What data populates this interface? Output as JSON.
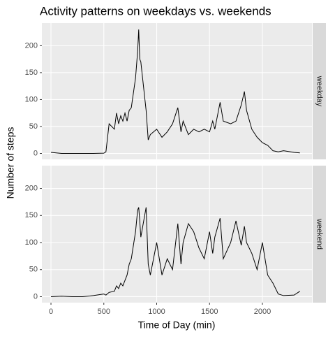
{
  "chart_data": {
    "type": "line",
    "title": "Activity patterns on weekdays vs. weekends",
    "xlabel": "Time of Day (min)",
    "ylabel": "Number of steps",
    "x": [
      0,
      100,
      200,
      300,
      400,
      500,
      520,
      550,
      600,
      620,
      640,
      660,
      680,
      700,
      720,
      740,
      760,
      800,
      820,
      830,
      840,
      850,
      900,
      920,
      940,
      1000,
      1050,
      1100,
      1150,
      1200,
      1230,
      1250,
      1300,
      1350,
      1400,
      1450,
      1500,
      1530,
      1550,
      1600,
      1630,
      1700,
      1750,
      1800,
      1830,
      1850,
      1900,
      1950,
      2000,
      2050,
      2100,
      2150,
      2200,
      2300,
      2355
    ],
    "series": [
      {
        "name": "weekday",
        "color": "#000000",
        "values": [
          2,
          0,
          0,
          0,
          0,
          0.5,
          3,
          55,
          45,
          75,
          55,
          70,
          60,
          75,
          60,
          80,
          85,
          140,
          190,
          230,
          175,
          170,
          80,
          25,
          35,
          45,
          30,
          40,
          55,
          85,
          40,
          60,
          35,
          45,
          40,
          45,
          40,
          60,
          45,
          95,
          60,
          55,
          60,
          90,
          115,
          80,
          45,
          30,
          20,
          15,
          5,
          3,
          5,
          2,
          1
        ]
      },
      {
        "name": "weekend",
        "color": "#000000",
        "values": [
          0,
          1,
          0,
          0,
          2,
          5,
          3,
          8,
          10,
          20,
          15,
          25,
          20,
          30,
          40,
          60,
          70,
          120,
          160,
          165,
          140,
          110,
          165,
          60,
          40,
          100,
          40,
          70,
          50,
          135,
          60,
          100,
          135,
          120,
          90,
          70,
          120,
          80,
          110,
          145,
          70,
          100,
          140,
          95,
          130,
          100,
          80,
          50,
          100,
          40,
          25,
          5,
          2,
          3,
          10
        ]
      }
    ],
    "xlim": [
      -86,
      2469
    ],
    "xticks": [
      0,
      500,
      1000,
      1500,
      2000
    ],
    "ylim": [
      -11,
      242
    ],
    "yticks": [
      0,
      50,
      100,
      150,
      200
    ],
    "grid": true
  }
}
